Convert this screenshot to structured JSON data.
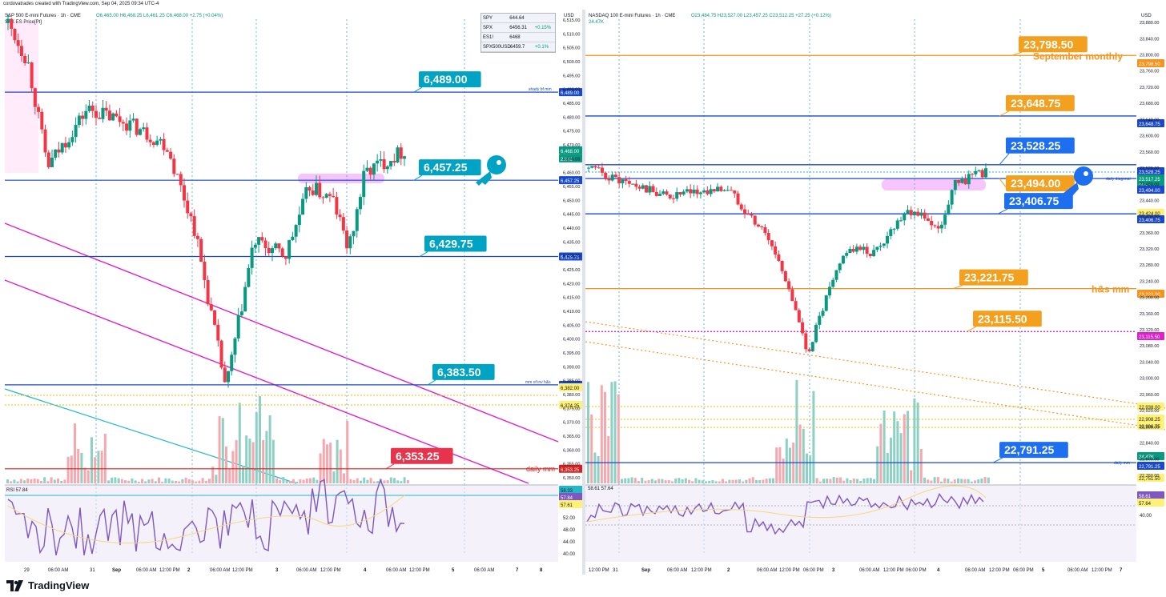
{
  "header": {
    "credit": "cordovatrades created with TradingView.com, Sep 04, 2025 09:34 UTC-4"
  },
  "left": {
    "title": "S&P 500 E-mini Futures · 1h · CME",
    "ohlc": "O6,465.00  H6,468.25  L6,461.25  C6,468.00  +2.75 (+0.04%)",
    "legend2": "SPX  ES Price[Pt]",
    "currency": "USD",
    "symbols": [
      {
        "sym": "SPY",
        "val": "644.64",
        "chg": ""
      },
      {
        "sym": "SPX",
        "val": "6456.31",
        "chg": "+0.15%"
      },
      {
        "sym": "ES1!",
        "val": "6468",
        "chg": ""
      },
      {
        "sym": "SPX500USD",
        "val": "6459.7",
        "chg": "+0.1%"
      }
    ],
    "y_ticks": [
      "6,515.00",
      "6,510.00",
      "6,505.00",
      "6,500.00",
      "6,495.00",
      "6,490.00",
      "6,485.00",
      "6,480.00",
      "6,475.00",
      "6,470.00",
      "6,465.00",
      "6,460.00",
      "6,455.00",
      "6,450.00",
      "6,445.00",
      "6,440.00",
      "6,435.00",
      "6,430.00",
      "6,425.00",
      "6,420.00",
      "6,415.00",
      "6,410.00",
      "6,405.00",
      "6,400.00",
      "6,395.00",
      "6,390.00",
      "6,385.00",
      "6,380.00",
      "6,375.00",
      "6,370.00",
      "6,365.00",
      "6,360.00",
      "6,355.00",
      "6,350.00"
    ],
    "levels": [
      {
        "label": "6,489.00",
        "axis": "6,489.00",
        "note": "shady bf mm",
        "color": "#1848cc",
        "callout": "#00a3c4"
      },
      {
        "label": "6,457.25",
        "axis": "6,457.25",
        "note": "",
        "color": "#1848cc",
        "callout": "#00a3c4"
      },
      {
        "label": "6,429.75",
        "axis": "6,429.75",
        "note": "",
        "color": "#1848cc",
        "callout": "#00a3c4"
      },
      {
        "label": "6,383.50",
        "axis": "6,383.50",
        "note": "mm of inv h&s",
        "color": "#1848cc",
        "callout": "#00a3c4"
      },
      {
        "label": "6,353.25",
        "axis": "6,353.25",
        "note": "daily mm",
        "color": "#d71f1f",
        "callout": "#e5344b"
      }
    ],
    "last_price": "6,468.00",
    "countdown": "25:42",
    "extra_axis": [
      "6,382.00",
      "6,374.25",
      "38.77K"
    ],
    "rsi": {
      "label": "RSI",
      "value": "57.84",
      "ma": "57.61",
      "top": "58.33",
      "ticks": [
        "52.00",
        "48.00",
        "44.00",
        "40.00"
      ]
    },
    "x_ticks": [
      "29",
      "06:00 AM",
      "31",
      "Sep",
      "06:00 AM",
      "12:00 PM",
      "2",
      "06:00 AM",
      "12:00 PM",
      "3",
      "06:00 AM",
      "12:00 PM",
      "4",
      "06:00 AM",
      "12:00 PM",
      "5",
      "06:00 AM",
      "7",
      "8"
    ]
  },
  "right": {
    "title": "NASDAQ 100 E-mini Futures · 1h · CME",
    "ohlc": "O23,484.75  H23,527.00  L23,457.25  C23,512.25  +27.25 (+0.12%)",
    "volume": "24.47K",
    "currency": "USD",
    "y_ticks": [
      "23,880.00",
      "23,840.00",
      "23,800.00",
      "23,760.00",
      "23,720.00",
      "23,680.00",
      "23,640.00",
      "23,600.00",
      "23,560.00",
      "23,520.00",
      "23,480.00",
      "23,440.00",
      "23,400.00",
      "23,360.00",
      "23,320.00",
      "23,280.00",
      "23,240.00",
      "23,200.00",
      "23,160.00",
      "23,120.00",
      "23,080.00",
      "23,040.00",
      "23,000.00",
      "22,960.00",
      "22,920.00",
      "22,880.00",
      "22,840.00",
      "22,800.00",
      "22,760.00"
    ],
    "levels": [
      {
        "label": "23,798.50",
        "note": "September monthly",
        "color": "#f7931a",
        "callout": "#f2a01e"
      },
      {
        "label": "23,648.75",
        "note": "",
        "color": "#1848cc",
        "callout": "#f2a01e"
      },
      {
        "label": "23,528.25",
        "note": "",
        "color": "#1848cc",
        "callout": "#1e6ff0"
      },
      {
        "label": "23,494.00",
        "note": "daily diagonal",
        "color": "#1848cc",
        "callout": "#f2a01e"
      },
      {
        "label": "23,406.75",
        "note": "",
        "color": "#1848cc",
        "callout": "#1e6ff0"
      },
      {
        "label": "23,221.75",
        "note": "h&s mm",
        "color": "#f7931a",
        "callout": "#f2a01e"
      },
      {
        "label": "23,115.50",
        "note": "",
        "color": "#e020c8",
        "callout": "#f2a01e"
      },
      {
        "label": "22,791.25",
        "note": "daily mm",
        "color": "#1848cc",
        "callout": "#1e6ff0"
      }
    ],
    "axis_tags": [
      "23,798.50",
      "23,648.75",
      "23,528.25",
      "23,517.25",
      "25:42",
      "23,494.00",
      "23,424.00",
      "23,406.75",
      "23,222.00",
      "23,115.50",
      "22,938.00",
      "22,908.25",
      "22,906.75",
      "24.47K",
      "22,791.25",
      "22,751.50"
    ],
    "rsi": {
      "value": "58.61",
      "ma": "57.64",
      "ticks": [
        "40.00"
      ]
    },
    "x_ticks": [
      "12:00 PM",
      "31",
      "Sep",
      "06:00 AM",
      "12:00 PM",
      "2",
      "06:00 AM",
      "12:00 PM",
      "06:00 PM",
      "3",
      "06:00 AM",
      "12:00 PM",
      "06:00 PM",
      "4",
      "06:00 AM",
      "12:00 PM",
      "06:00 PM",
      "5",
      "06:00 AM",
      "12:00 PM",
      "7"
    ]
  },
  "footer": {
    "brand": "TradingView"
  }
}
